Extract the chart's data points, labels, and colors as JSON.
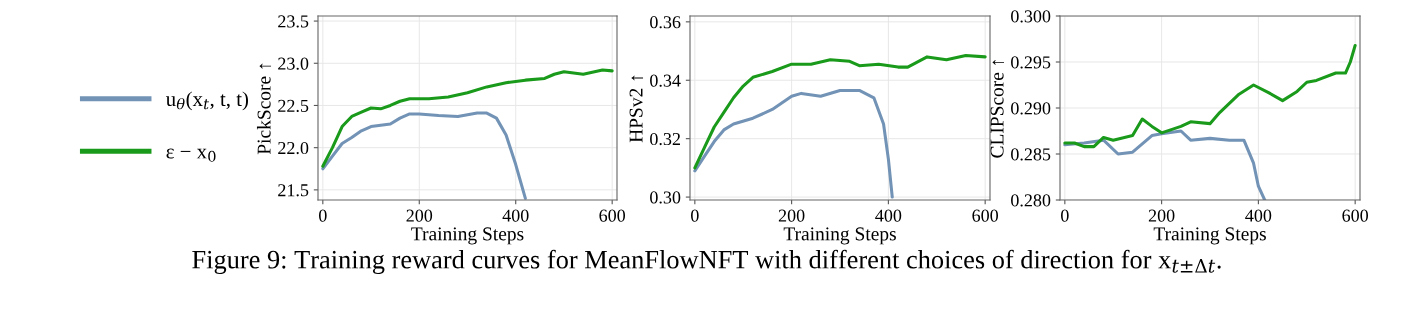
{
  "chart_data": [
    {
      "type": "line",
      "ylabel": "PickScore ↑",
      "xlabel": "Training Steps",
      "xlim": [
        -10,
        610
      ],
      "xticks": [
        0,
        200,
        400,
        600
      ],
      "ylim": [
        21.38,
        23.56
      ],
      "yticks": [
        21.5,
        {
          "value": 22,
          "label": "22.0"
        },
        22.5,
        {
          "value": 23,
          "label": "23.0"
        },
        23.5
      ],
      "grid": true,
      "legend": "left",
      "marker": "none",
      "line_style": "solid",
      "annotations": [
        "Figure 9: Training reward curves for MeanFlowNFT with different choices of direction for x$_{t±Δt}$."
      ],
      "series": [
        {
          "name": "u$_{θ}$(x$_{t}$, t, t)",
          "color": "#7293b5",
          "x": [
            0,
            20,
            40,
            60,
            80,
            100,
            140,
            160,
            180,
            200,
            240,
            280,
            320,
            340,
            360,
            380,
            400,
            420
          ],
          "values": [
            21.75,
            21.9,
            22.05,
            22.12,
            22.2,
            22.25,
            22.28,
            22.35,
            22.4,
            22.4,
            22.38,
            22.37,
            22.41,
            22.41,
            22.35,
            22.15,
            21.8,
            21.4
          ]
        },
        {
          "name": "ε − x$_{0}$",
          "color": "#1a9a1a",
          "x": [
            0,
            20,
            40,
            60,
            80,
            100,
            120,
            140,
            160,
            180,
            200,
            220,
            260,
            300,
            340,
            380,
            420,
            460,
            480,
            500,
            540,
            580,
            600
          ],
          "values": [
            21.78,
            22.0,
            22.25,
            22.37,
            22.42,
            22.47,
            22.46,
            22.5,
            22.55,
            22.58,
            22.58,
            22.58,
            22.6,
            22.65,
            22.72,
            22.77,
            22.8,
            22.82,
            22.87,
            22.9,
            22.87,
            22.92,
            22.91
          ]
        }
      ]
    },
    {
      "type": "line",
      "ylabel": "HPSv2 ↑",
      "xlabel": "Training Steps",
      "xlim": [
        -10,
        610
      ],
      "xticks": [
        0,
        200,
        400,
        600
      ],
      "ylim": [
        0.299,
        0.362
      ],
      "yticks": [
        {
          "value": 0.3,
          "label": "0.30"
        },
        {
          "value": 0.32,
          "label": "0.32"
        },
        {
          "value": 0.34,
          "label": "0.34"
        },
        {
          "value": 0.36,
          "label": "0.36"
        }
      ],
      "grid": true,
      "marker": "none",
      "line_style": "solid",
      "series": [
        {
          "color": "#7293b5",
          "x": [
            0,
            20,
            40,
            60,
            80,
            120,
            160,
            200,
            220,
            260,
            300,
            340,
            370,
            390,
            400,
            408
          ],
          "values": [
            0.309,
            0.314,
            0.319,
            0.323,
            0.325,
            0.327,
            0.33,
            0.3345,
            0.3355,
            0.3345,
            0.3365,
            0.3365,
            0.334,
            0.325,
            0.313,
            0.3
          ]
        },
        {
          "color": "#1a9a1a",
          "x": [
            0,
            20,
            40,
            60,
            80,
            100,
            120,
            160,
            200,
            240,
            280,
            320,
            340,
            380,
            420,
            440,
            480,
            520,
            560,
            600
          ],
          "values": [
            0.31,
            0.317,
            0.324,
            0.329,
            0.334,
            0.338,
            0.341,
            0.343,
            0.3455,
            0.3455,
            0.347,
            0.3465,
            0.345,
            0.3455,
            0.3445,
            0.3445,
            0.348,
            0.347,
            0.3485,
            0.348
          ]
        }
      ]
    },
    {
      "type": "line",
      "ylabel": "CLIPScore ↑",
      "xlabel": "Training Steps",
      "xlim": [
        -10,
        610
      ],
      "xticks": [
        0,
        200,
        400,
        600
      ],
      "ylim": [
        0.28,
        0.3
      ],
      "yticks": [
        {
          "value": 0.28,
          "label": "0.280"
        },
        {
          "value": 0.285,
          "label": "0.285"
        },
        {
          "value": 0.29,
          "label": "0.290"
        },
        {
          "value": 0.295,
          "label": "0.295"
        },
        {
          "value": 0.3,
          "label": "0.300"
        }
      ],
      "grid": true,
      "marker": "none",
      "line_style": "solid",
      "series": [
        {
          "color": "#7293b5",
          "x": [
            0,
            40,
            80,
            110,
            140,
            180,
            200,
            240,
            260,
            300,
            340,
            370,
            390,
            400,
            413
          ],
          "values": [
            0.286,
            0.2862,
            0.2865,
            0.285,
            0.2852,
            0.287,
            0.2872,
            0.2875,
            0.2865,
            0.2867,
            0.2865,
            0.2865,
            0.284,
            0.2815,
            0.28
          ]
        },
        {
          "color": "#1a9a1a",
          "x": [
            0,
            20,
            40,
            60,
            80,
            100,
            140,
            160,
            180,
            200,
            240,
            260,
            300,
            320,
            360,
            390,
            420,
            450,
            480,
            500,
            520,
            560,
            580,
            590,
            600
          ],
          "values": [
            0.2862,
            0.2862,
            0.2858,
            0.2858,
            0.2868,
            0.2865,
            0.287,
            0.2888,
            0.288,
            0.2873,
            0.288,
            0.2885,
            0.2883,
            0.2895,
            0.2915,
            0.2925,
            0.2917,
            0.2908,
            0.2918,
            0.2928,
            0.293,
            0.2938,
            0.2938,
            0.295,
            0.2968
          ]
        }
      ]
    }
  ]
}
